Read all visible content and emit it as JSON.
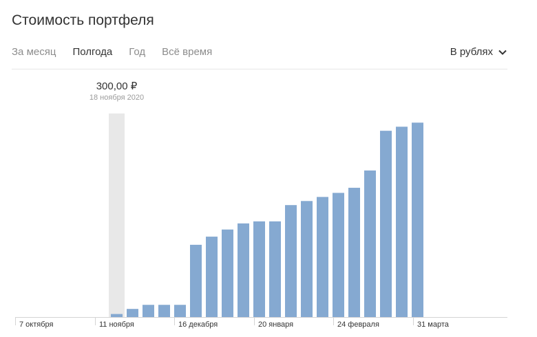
{
  "header": {
    "title": "Стоимость портфеля"
  },
  "tabs": [
    {
      "label": "За месяц",
      "active": false
    },
    {
      "label": "Полгода",
      "active": true
    },
    {
      "label": "Год",
      "active": false
    },
    {
      "label": "Всё время",
      "active": false
    }
  ],
  "currency_select": {
    "label": "В рублях",
    "icon": "chevron-down-icon"
  },
  "tooltip": {
    "value": "300,00 ₽",
    "date": "18 ноября 2020"
  },
  "colors": {
    "bar": "#85a9d1",
    "highlight": "#e8e8e8",
    "axis": "#d4d4d4"
  },
  "chart_data": {
    "type": "bar",
    "x_tick_labels": [
      "7 октября",
      "11 ноября",
      "16 декабря",
      "20 января",
      "24 февраля",
      "31 марта"
    ],
    "values": [
      300,
      800,
      1200,
      1200,
      1200,
      7100,
      7900,
      8600,
      9200,
      9400,
      9400,
      11000,
      11400,
      11800,
      12200,
      12700,
      14400,
      18300,
      18700,
      19100
    ],
    "highlight_index": 0,
    "ylim": [
      0,
      20000
    ],
    "grid": false,
    "legend": false
  }
}
